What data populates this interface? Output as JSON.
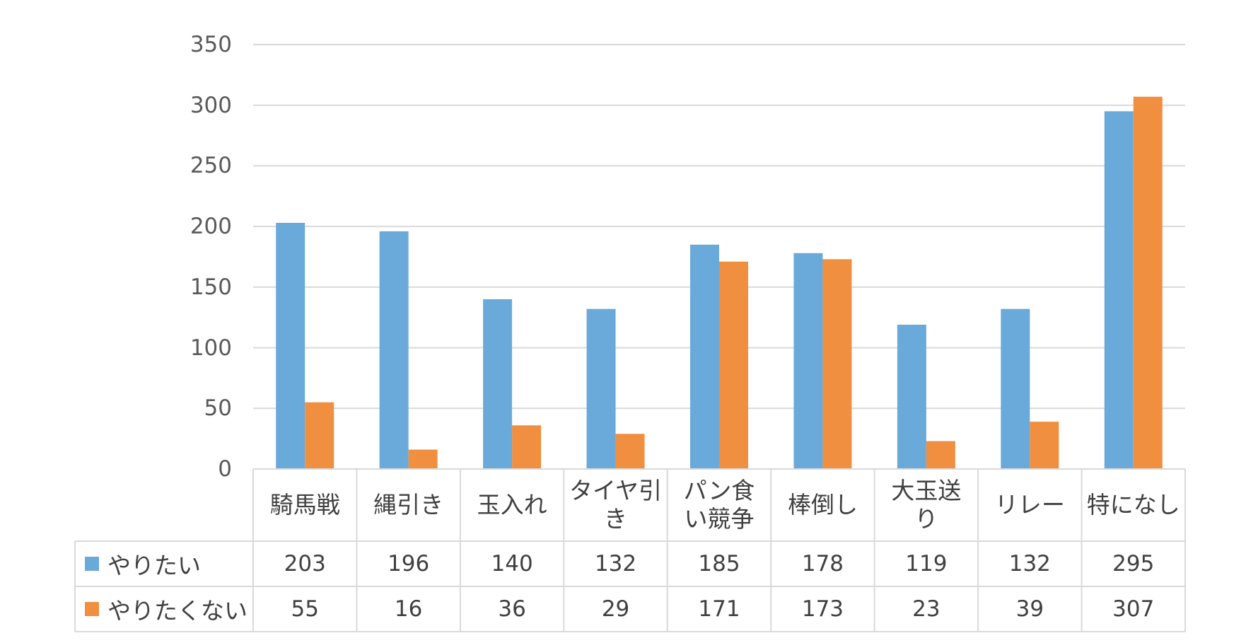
{
  "chart_data": {
    "type": "bar",
    "categories": [
      "騎馬戦",
      "縄引き",
      "玉入れ",
      "タイヤ引き",
      "パン食い競争",
      "棒倒し",
      "大玉送り",
      "リレー",
      "特になし"
    ],
    "category_lines": [
      [
        "騎馬戦"
      ],
      [
        "縄引き"
      ],
      [
        "玉入れ"
      ],
      [
        "タイヤ引",
        "き"
      ],
      [
        "パン食",
        "い競争"
      ],
      [
        "棒倒し"
      ],
      [
        "大玉送",
        "り"
      ],
      [
        "リレー"
      ],
      [
        "特になし"
      ]
    ],
    "series": [
      {
        "name": "やりたい",
        "color": "#6aaadb",
        "values": [
          203,
          196,
          140,
          132,
          185,
          178,
          119,
          132,
          295
        ]
      },
      {
        "name": "やりたくない",
        "color": "#f08f40",
        "values": [
          55,
          16,
          36,
          29,
          171,
          173,
          23,
          39,
          307
        ]
      }
    ],
    "y_ticks": [
      "0",
      "50",
      "100",
      "150",
      "200",
      "250",
      "300",
      "350"
    ],
    "ylim": [
      0,
      350
    ],
    "grid": true,
    "legend": "data-table",
    "colors": {
      "gridline": "#d9d9d9",
      "table_border": "#d9d9d9",
      "text": "#404040",
      "axis_text": "#595959"
    }
  }
}
